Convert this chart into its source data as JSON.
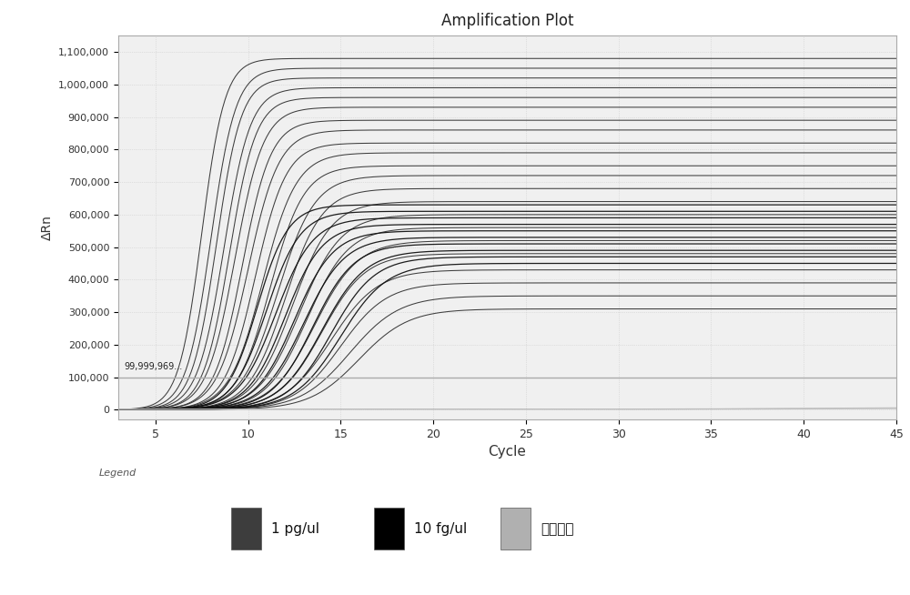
{
  "title": "Amplification Plot",
  "xlabel": "Cycle",
  "ylabel": "ΔRn",
  "xlim": [
    3,
    45
  ],
  "ylim": [
    -30000,
    1150000
  ],
  "yticks": [
    0,
    100000,
    200000,
    300000,
    400000,
    500000,
    600000,
    700000,
    800000,
    900000,
    1000000,
    1100000
  ],
  "ytick_labels": [
    "0",
    "100,000",
    "200,000",
    "300,000",
    "400,000",
    "500,000",
    "600,000",
    "700,000",
    "800,000",
    "900,000",
    "1,000,000",
    "1,100,000"
  ],
  "xticks": [
    5,
    10,
    15,
    20,
    25,
    30,
    35,
    40,
    45
  ],
  "threshold": 100000,
  "threshold_label": "99,999,969...",
  "bg_color": "#ffffff",
  "plot_bg_color": "#f0f0f0",
  "grid_color": "#cccccc",
  "threshold_color": "#aaaaaa",
  "legend_title": "Legend",
  "legend_items": [
    {
      "label": "1 pg/ul",
      "color": "#3d3d3d"
    },
    {
      "label": "10 fg/ul",
      "color": "#000000"
    },
    {
      "label": "阴性对照",
      "color": "#b0b0b0"
    }
  ],
  "pg_curves": [
    [
      7.5,
      1.6,
      1080000
    ],
    [
      8.0,
      1.5,
      1050000
    ],
    [
      8.3,
      1.5,
      1020000
    ],
    [
      8.7,
      1.4,
      990000
    ],
    [
      9.0,
      1.4,
      960000
    ],
    [
      9.3,
      1.3,
      930000
    ],
    [
      9.7,
      1.3,
      890000
    ],
    [
      10.0,
      1.2,
      860000
    ],
    [
      10.4,
      1.2,
      820000
    ],
    [
      10.8,
      1.1,
      790000
    ],
    [
      11.2,
      1.1,
      750000
    ],
    [
      11.6,
      1.0,
      720000
    ],
    [
      12.0,
      1.0,
      680000
    ],
    [
      12.4,
      0.95,
      640000
    ],
    [
      12.8,
      0.9,
      600000
    ],
    [
      13.2,
      0.9,
      560000
    ],
    [
      13.6,
      0.85,
      520000
    ],
    [
      14.0,
      0.85,
      480000
    ],
    [
      14.5,
      0.8,
      430000
    ],
    [
      15.0,
      0.8,
      390000
    ],
    [
      15.5,
      0.75,
      350000
    ],
    [
      16.0,
      0.75,
      310000
    ]
  ],
  "fg_curves": [
    [
      10.5,
      1.2,
      630000
    ],
    [
      11.0,
      1.1,
      610000
    ],
    [
      11.5,
      1.0,
      590000
    ],
    [
      12.0,
      1.0,
      570000
    ],
    [
      12.5,
      0.95,
      550000
    ],
    [
      13.0,
      0.9,
      530000
    ],
    [
      13.5,
      0.9,
      510000
    ],
    [
      14.0,
      0.85,
      490000
    ],
    [
      14.5,
      0.85,
      470000
    ],
    [
      15.0,
      0.8,
      450000
    ]
  ]
}
